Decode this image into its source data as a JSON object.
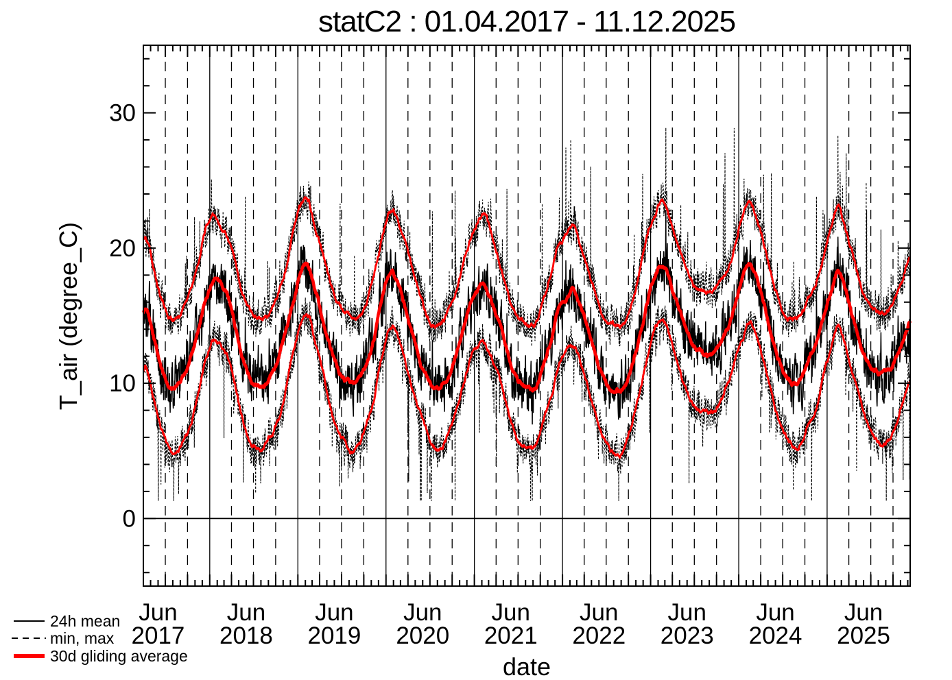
{
  "title": "statC2 : 01.04.2017 - 11.12.2025",
  "colors": {
    "foreground": "#000000",
    "average_red": "#ff0000",
    "background": "#ffffff"
  },
  "legend": {
    "items": [
      {
        "label": "24h mean",
        "style": "solid-black-thin"
      },
      {
        "label": "min, max",
        "style": "dashed-black-thin"
      },
      {
        "label": "30d gliding average",
        "style": "solid-red-thick"
      }
    ]
  },
  "chart_data": {
    "type": "line",
    "title": "statC2 : 01.04.2017 - 11.12.2025",
    "xlabel": "date",
    "ylabel": "T_air (degree_C)",
    "x_start": "2017-04-01",
    "x_end": "2025-12-11",
    "ylim": [
      -5,
      35
    ],
    "yticks": [
      0,
      10,
      20,
      30
    ],
    "ytick_labels": [
      "0",
      "10",
      "20",
      "30"
    ],
    "ytick_minor_step": 2,
    "zero_line": 0,
    "grid": {
      "solid_vertical": "1 Jan each year",
      "dashed_vertical": "1 Apr, 1 Jul, 1 Oct each year",
      "minor_ticks": "monthly"
    },
    "legend_position": "bottom-left",
    "x_tick_labels": [
      {
        "month": "Jun",
        "year": "2017"
      },
      {
        "month": "Jun",
        "year": "2018"
      },
      {
        "month": "Jun",
        "year": "2019"
      },
      {
        "month": "Jun",
        "year": "2020"
      },
      {
        "month": "Jun",
        "year": "2021"
      },
      {
        "month": "Jun",
        "year": "2022"
      },
      {
        "month": "Jun",
        "year": "2023"
      },
      {
        "month": "Jun",
        "year": "2024"
      },
      {
        "month": "Jun",
        "year": "2025"
      }
    ],
    "monthly_anchor": "series values sampled mid-month, Apr 2017 through Dec 2025 (105 points), read from figure",
    "n_months": 105,
    "series": [
      {
        "name": "30d gliding average of 24h mean",
        "color": "#ff0000",
        "line": "solid",
        "width": "thick",
        "monthly_values": [
          15.3,
          13.2,
          11.2,
          10.1,
          10.0,
          10.8,
          12.0,
          14.0,
          16.2,
          17.6,
          17.2,
          16.2,
          14.3,
          12.0,
          10.5,
          10.0,
          9.9,
          10.8,
          12.2,
          14.2,
          16.5,
          18.4,
          18.6,
          16.8,
          14.8,
          12.8,
          11.2,
          10.4,
          10.2,
          10.6,
          11.8,
          13.6,
          16.0,
          18.1,
          17.7,
          16.2,
          14.2,
          12.2,
          10.6,
          9.8,
          9.7,
          10.5,
          12.0,
          14.0,
          15.8,
          17.0,
          17.2,
          16.0,
          14.4,
          12.4,
          10.8,
          10.0,
          9.8,
          10.0,
          11.6,
          13.4,
          15.4,
          16.2,
          16.9,
          15.8,
          14.0,
          12.2,
          10.6,
          9.7,
          9.4,
          9.8,
          11.4,
          13.6,
          15.8,
          17.8,
          18.7,
          18.0,
          16.2,
          14.6,
          13.2,
          12.5,
          12.2,
          12.3,
          13.0,
          14.0,
          15.6,
          17.6,
          18.8,
          17.6,
          15.6,
          13.4,
          11.6,
          10.4,
          10.1,
          10.4,
          11.6,
          12.8,
          14.8,
          16.5,
          18.3,
          17.0,
          15.0,
          13.0,
          11.5,
          10.8,
          10.6,
          10.9,
          11.8,
          13.2,
          14.6
        ]
      },
      {
        "name": "30d gliding average of daily min",
        "color": "#ff0000",
        "line": "solid",
        "width": "medium",
        "monthly_values": [
          11.0,
          8.6,
          6.6,
          5.4,
          5.0,
          5.9,
          7.2,
          9.4,
          12.0,
          13.4,
          13.0,
          12.0,
          10.0,
          7.6,
          6.0,
          5.5,
          5.4,
          6.2,
          7.6,
          9.8,
          12.4,
          14.6,
          15.2,
          12.8,
          10.6,
          8.4,
          6.7,
          5.6,
          5.0,
          5.8,
          7.2,
          9.2,
          12.0,
          14.1,
          13.8,
          12.2,
          10.0,
          8.0,
          6.4,
          5.4,
          5.1,
          6.0,
          7.6,
          9.8,
          11.8,
          13.0,
          13.1,
          11.8,
          10.2,
          8.2,
          6.4,
          5.6,
          5.5,
          5.7,
          7.2,
          9.0,
          11.2,
          12.2,
          12.7,
          11.6,
          9.8,
          7.8,
          6.2,
          5.2,
          4.5,
          5.3,
          7.0,
          9.2,
          11.6,
          13.8,
          14.6,
          13.8,
          12.0,
          10.2,
          8.8,
          8.0,
          7.7,
          7.6,
          8.6,
          9.8,
          11.4,
          13.4,
          14.7,
          13.4,
          11.4,
          9.2,
          7.4,
          6.2,
          5.4,
          5.3,
          6.8,
          8.2,
          10.6,
          12.4,
          14.4,
          13.0,
          11.0,
          9.0,
          7.2,
          6.0,
          5.5,
          5.9,
          7.0,
          8.8,
          10.4
        ]
      },
      {
        "name": "30d gliding average of daily max",
        "color": "#ff0000",
        "line": "solid",
        "width": "medium",
        "monthly_values": [
          20.8,
          18.4,
          16.2,
          15.0,
          14.8,
          15.6,
          16.8,
          18.8,
          21.2,
          22.3,
          21.8,
          20.8,
          18.9,
          16.6,
          15.2,
          14.8,
          14.6,
          15.5,
          16.9,
          18.9,
          21.2,
          23.0,
          23.2,
          21.4,
          19.4,
          17.4,
          15.8,
          15.0,
          14.8,
          15.2,
          16.4,
          18.2,
          20.6,
          22.5,
          22.2,
          20.8,
          18.8,
          16.8,
          15.2,
          14.5,
          14.4,
          15.1,
          16.6,
          18.6,
          20.4,
          21.8,
          22.3,
          20.8,
          19.0,
          17.0,
          15.4,
          14.7,
          14.5,
          14.7,
          16.2,
          18.0,
          20.0,
          20.8,
          21.5,
          20.4,
          18.6,
          16.8,
          15.2,
          14.3,
          14.1,
          14.4,
          16.0,
          18.2,
          20.4,
          22.4,
          23.3,
          22.6,
          20.8,
          19.2,
          17.8,
          17.1,
          16.8,
          16.7,
          17.4,
          18.6,
          20.2,
          22.2,
          23.3,
          22.2,
          20.2,
          18.0,
          16.2,
          15.0,
          14.8,
          15.0,
          16.2,
          17.4,
          19.4,
          21.1,
          23.0,
          21.6,
          19.6,
          17.6,
          16.1,
          15.4,
          15.2,
          15.5,
          16.4,
          17.8,
          19.2
        ]
      }
    ],
    "daily_series_note": {
      "24h mean": "thin solid black daily curve scattering +/-2 degC around the 30d mean series",
      "min, max": "fine-dashed black daily extremes scattering around the 30d min/max series, spikes up to ~28.9 and floors near ~1.3",
      "render_noise": {
        "seed": 88675123,
        "mean_sd": 1.0,
        "envelope_sd": 1.3,
        "spike_fraction": 0.07
      }
    }
  }
}
